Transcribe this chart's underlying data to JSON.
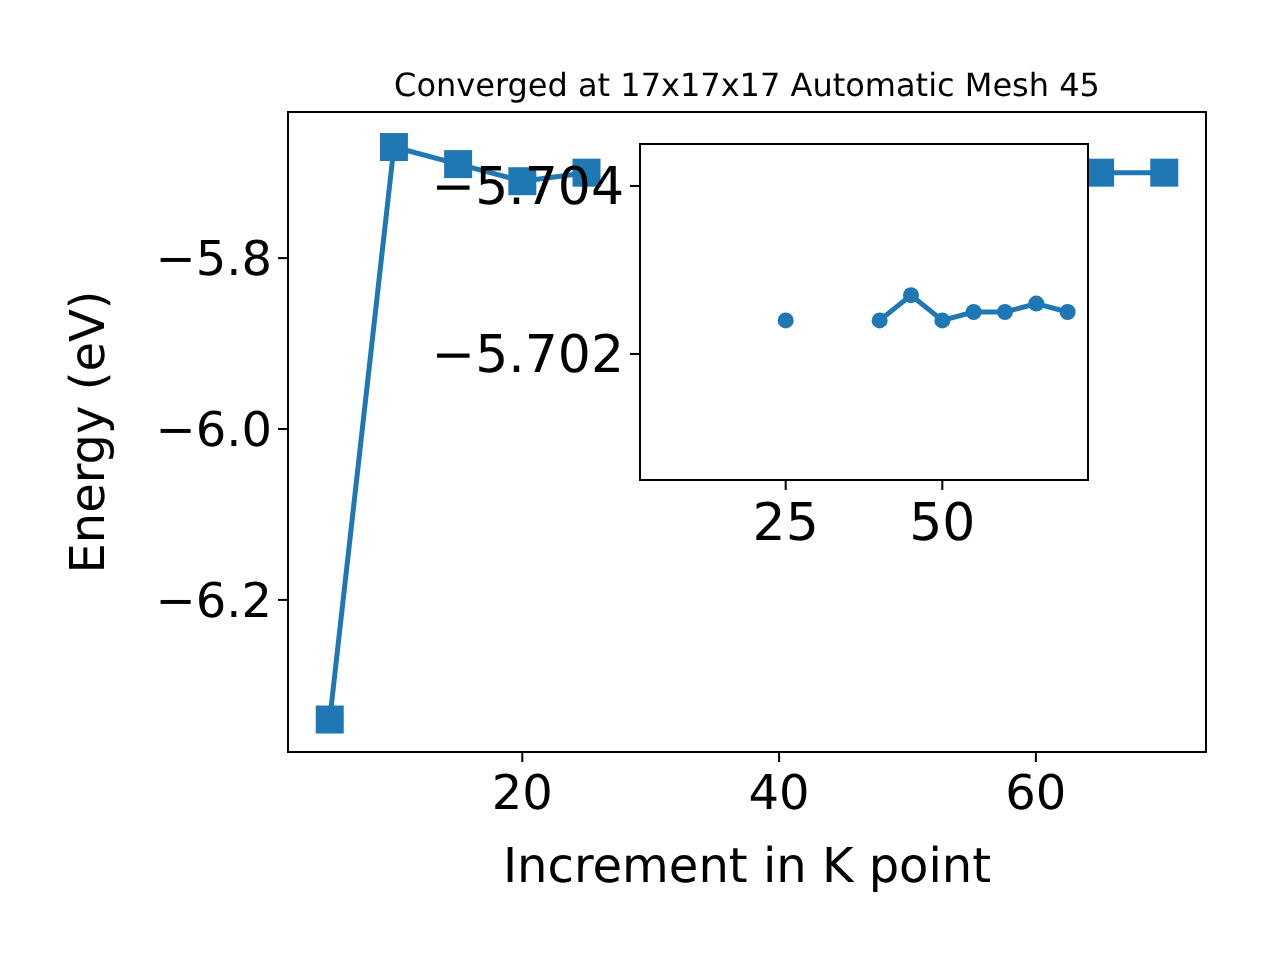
{
  "chart_data": [
    {
      "type": "line",
      "title": "Converged at 17x17x17 Automatic Mesh 45",
      "xlabel": "Increment in K point",
      "ylabel": "Energy (eV)",
      "marker": "square",
      "line_style": "solid",
      "grid": false,
      "series": [
        {
          "color": "#1f77b4",
          "x": [
            5,
            10,
            15,
            20,
            25,
            30,
            35,
            40,
            45,
            50,
            55,
            60,
            65,
            70
          ],
          "values": [
            -6.34,
            -5.67,
            -5.69,
            -5.71,
            -5.7,
            null,
            null,
            null,
            null,
            null,
            null,
            null,
            -5.7,
            -5.7
          ]
        }
      ],
      "xlim": [
        1.75,
        73.25
      ],
      "xticks": [
        20,
        40,
        60
      ],
      "ylim": [
        -6.378,
        -5.629
      ],
      "yticks": [
        {
          "value": -6.2,
          "label": "−6.2"
        },
        {
          "value": -6.0,
          "label": "−6.0"
        },
        {
          "value": -5.8,
          "label": "−5.8"
        }
      ]
    },
    {
      "type": "line",
      "marker": "circle",
      "line_style": "solid",
      "grid": false,
      "series": [
        {
          "color": "#1f77b4",
          "x": [
            25,
            30,
            35,
            40,
            45,
            50,
            55,
            60,
            65,
            70
          ],
          "values": [
            -5.7024,
            null,
            null,
            -5.7024,
            -5.7027,
            -5.7024,
            -5.7025,
            -5.7025,
            -5.7026,
            -5.7025
          ]
        }
      ],
      "xlim": [
        1.75,
        73.25
      ],
      "xticks": [
        25,
        50
      ],
      "ylim": [
        -5.7005,
        -5.7045
      ],
      "yticks": [
        {
          "value": -5.704,
          "label": "−5.704"
        },
        {
          "value": -5.702,
          "label": "−5.702"
        }
      ]
    }
  ]
}
